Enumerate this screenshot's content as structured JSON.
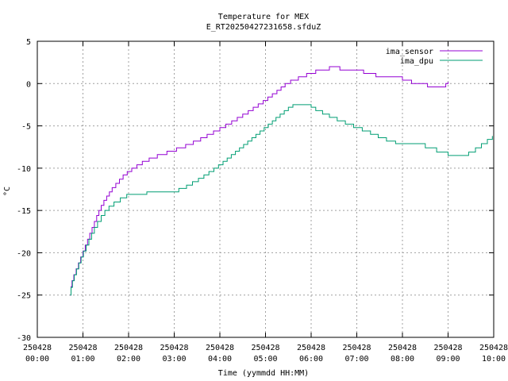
{
  "chart_data": {
    "type": "line",
    "title": "Temperature for MEX",
    "subtitle": "E_RT20250427231658.sfduZ",
    "xlabel": "Time (yymmdd HH:MM)",
    "ylabel": "°C",
    "xlim": [
      0,
      10
    ],
    "ylim": [
      -30,
      5
    ],
    "grid": true,
    "legend_position": "top-right",
    "x_unit_note": "hours since 250428 00:00",
    "x_ticks": [
      {
        "date": "250428",
        "time": "00:00"
      },
      {
        "date": "250428",
        "time": "01:00"
      },
      {
        "date": "250428",
        "time": "02:00"
      },
      {
        "date": "250428",
        "time": "03:00"
      },
      {
        "date": "250428",
        "time": "04:00"
      },
      {
        "date": "250428",
        "time": "05:00"
      },
      {
        "date": "250428",
        "time": "06:00"
      },
      {
        "date": "250428",
        "time": "07:00"
      },
      {
        "date": "250428",
        "time": "08:00"
      },
      {
        "date": "250428",
        "time": "09:00"
      },
      {
        "date": "250428",
        "time": "10:00"
      }
    ],
    "y_ticks": [
      "-30",
      "-25",
      "-20",
      "-15",
      "-10",
      "-5",
      "0",
      "5"
    ],
    "series": [
      {
        "name": "ima_sensor",
        "color": "#9400d3",
        "step": true,
        "points": [
          [
            0.72,
            -25.0
          ],
          [
            0.74,
            -24.0
          ],
          [
            0.76,
            -23.3
          ],
          [
            0.8,
            -22.6
          ],
          [
            0.85,
            -21.9
          ],
          [
            0.9,
            -21.2
          ],
          [
            0.95,
            -20.5
          ],
          [
            1.0,
            -19.8
          ],
          [
            1.05,
            -19.1
          ],
          [
            1.1,
            -18.4
          ],
          [
            1.15,
            -17.7
          ],
          [
            1.2,
            -17.0
          ],
          [
            1.25,
            -16.3
          ],
          [
            1.3,
            -15.6
          ],
          [
            1.35,
            -15.0
          ],
          [
            1.4,
            -14.4
          ],
          [
            1.46,
            -13.8
          ],
          [
            1.52,
            -13.3
          ],
          [
            1.58,
            -12.8
          ],
          [
            1.64,
            -12.3
          ],
          [
            1.72,
            -11.8
          ],
          [
            1.8,
            -11.3
          ],
          [
            1.88,
            -10.8
          ],
          [
            1.97,
            -10.4
          ],
          [
            2.07,
            -10.0
          ],
          [
            2.18,
            -9.6
          ],
          [
            2.3,
            -9.2
          ],
          [
            2.45,
            -8.8
          ],
          [
            2.63,
            -8.4
          ],
          [
            2.84,
            -8.0
          ],
          [
            3.05,
            -7.6
          ],
          [
            3.25,
            -7.2
          ],
          [
            3.42,
            -6.8
          ],
          [
            3.58,
            -6.4
          ],
          [
            3.72,
            -6.0
          ],
          [
            3.86,
            -5.6
          ],
          [
            4.0,
            -5.2
          ],
          [
            4.13,
            -4.8
          ],
          [
            4.26,
            -4.4
          ],
          [
            4.38,
            -4.0
          ],
          [
            4.5,
            -3.6
          ],
          [
            4.62,
            -3.2
          ],
          [
            4.73,
            -2.8
          ],
          [
            4.84,
            -2.4
          ],
          [
            4.95,
            -2.0
          ],
          [
            5.05,
            -1.6
          ],
          [
            5.15,
            -1.2
          ],
          [
            5.25,
            -0.8
          ],
          [
            5.34,
            -0.4
          ],
          [
            5.43,
            0.0
          ],
          [
            5.55,
            0.4
          ],
          [
            5.72,
            0.8
          ],
          [
            5.9,
            1.2
          ],
          [
            6.1,
            1.6
          ],
          [
            6.4,
            2.0
          ],
          [
            6.63,
            1.6
          ],
          [
            7.15,
            1.2
          ],
          [
            7.42,
            0.8
          ],
          [
            7.95,
            0.8
          ],
          [
            8.0,
            0.4
          ],
          [
            8.2,
            0.0
          ],
          [
            8.55,
            -0.4
          ],
          [
            8.95,
            0.0
          ],
          [
            9.0,
            0.2
          ]
        ]
      },
      {
        "name": "ima_dpu",
        "color": "#009e73",
        "step": true,
        "points": [
          [
            0.72,
            -25.0
          ],
          [
            0.74,
            -24.1
          ],
          [
            0.77,
            -23.3
          ],
          [
            0.81,
            -22.6
          ],
          [
            0.86,
            -21.9
          ],
          [
            0.91,
            -21.2
          ],
          [
            0.96,
            -20.5
          ],
          [
            1.01,
            -19.8
          ],
          [
            1.07,
            -19.1
          ],
          [
            1.13,
            -18.4
          ],
          [
            1.19,
            -17.7
          ],
          [
            1.25,
            -17.0
          ],
          [
            1.32,
            -16.3
          ],
          [
            1.4,
            -15.6
          ],
          [
            1.48,
            -15.0
          ],
          [
            1.57,
            -14.5
          ],
          [
            1.68,
            -14.0
          ],
          [
            1.82,
            -13.5
          ],
          [
            1.96,
            -13.1
          ],
          [
            2.4,
            -12.8
          ],
          [
            3.1,
            -12.4
          ],
          [
            3.27,
            -12.0
          ],
          [
            3.4,
            -11.6
          ],
          [
            3.53,
            -11.2
          ],
          [
            3.65,
            -10.8
          ],
          [
            3.76,
            -10.4
          ],
          [
            3.87,
            -10.0
          ],
          [
            3.97,
            -9.6
          ],
          [
            4.07,
            -9.2
          ],
          [
            4.16,
            -8.8
          ],
          [
            4.25,
            -8.4
          ],
          [
            4.34,
            -8.0
          ],
          [
            4.43,
            -7.6
          ],
          [
            4.52,
            -7.2
          ],
          [
            4.61,
            -6.8
          ],
          [
            4.7,
            -6.4
          ],
          [
            4.79,
            -6.0
          ],
          [
            4.88,
            -5.6
          ],
          [
            4.97,
            -5.2
          ],
          [
            5.06,
            -4.8
          ],
          [
            5.15,
            -4.4
          ],
          [
            5.23,
            -4.0
          ],
          [
            5.32,
            -3.6
          ],
          [
            5.41,
            -3.2
          ],
          [
            5.5,
            -2.8
          ],
          [
            5.6,
            -2.5
          ],
          [
            6.0,
            -2.8
          ],
          [
            6.1,
            -3.2
          ],
          [
            6.25,
            -3.6
          ],
          [
            6.4,
            -4.0
          ],
          [
            6.57,
            -4.4
          ],
          [
            6.75,
            -4.8
          ],
          [
            6.93,
            -5.2
          ],
          [
            7.12,
            -5.6
          ],
          [
            7.3,
            -6.0
          ],
          [
            7.47,
            -6.4
          ],
          [
            7.65,
            -6.8
          ],
          [
            7.85,
            -7.1
          ],
          [
            8.5,
            -7.6
          ],
          [
            8.75,
            -8.1
          ],
          [
            9.0,
            -8.5
          ],
          [
            9.45,
            -8.1
          ],
          [
            9.6,
            -7.6
          ],
          [
            9.73,
            -7.1
          ],
          [
            9.86,
            -6.6
          ],
          [
            9.97,
            -6.2
          ]
        ]
      }
    ]
  }
}
